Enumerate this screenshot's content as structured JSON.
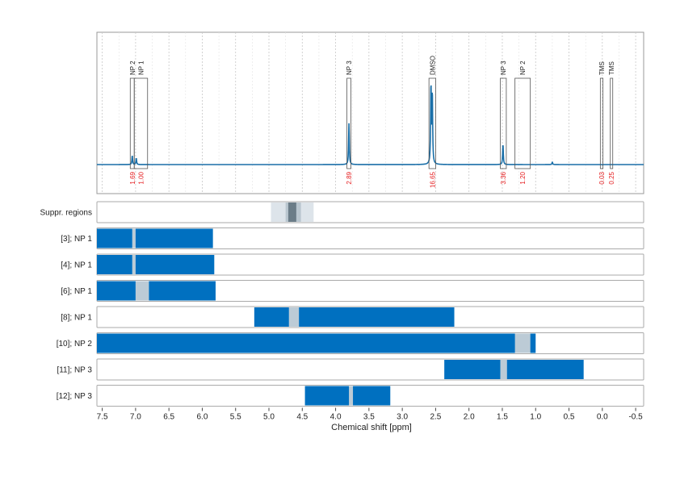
{
  "chart_data": {
    "type": "nmr-spectrum-with-range-tracks",
    "xlabel": "Chemical shift [ppm]",
    "xlim": [
      7.58,
      -0.62
    ],
    "x_reversed": true,
    "x_ticks": [
      "7.5",
      "7.0",
      "6.5",
      "6.0",
      "5.5",
      "5.0",
      "4.5",
      "4.0",
      "3.5",
      "3.0",
      "2.5",
      "2.0",
      "1.5",
      "1.0",
      "0.5",
      "0.0",
      "-0.5"
    ],
    "grid": true,
    "colors": {
      "spectrum": "#1a6fa8",
      "range": "#0070c0",
      "gap": "#bccbd6",
      "suppression_light": "#dde4ea",
      "suppression_dark": "#6b7d88",
      "integral": "#e41a1c"
    },
    "spectrum": {
      "peaks": [
        {
          "ppm": 7.05,
          "height": 0.07
        },
        {
          "ppm": 6.99,
          "height": 0.05
        },
        {
          "ppm": 3.8,
          "height": 0.32
        },
        {
          "ppm": 2.57,
          "height": 0.62
        },
        {
          "ppm": 2.55,
          "height": 0.55
        },
        {
          "ppm": 1.49,
          "height": 0.16
        },
        {
          "ppm": 0.75,
          "height": 0.02
        }
      ],
      "regions": [
        {
          "label": "NP 2",
          "from": 7.08,
          "to": 7.02,
          "integral": "1.69"
        },
        {
          "label": "NP 1",
          "from": 7.02,
          "to": 6.82,
          "integral": "1.00"
        },
        {
          "label": "NP 3",
          "from": 3.83,
          "to": 3.77,
          "integral": "2.89"
        },
        {
          "label": "DMSO",
          "from": 2.6,
          "to": 2.5,
          "integral": "16.65"
        },
        {
          "label": "NP 3",
          "from": 1.53,
          "to": 1.44,
          "integral": "3.36"
        },
        {
          "label": "NP 2",
          "from": 1.31,
          "to": 1.08,
          "integral": "1.20"
        },
        {
          "label": "TMS",
          "from": 0.03,
          "to": -0.01,
          "integral": "0.03"
        },
        {
          "label": "TMS",
          "from": -0.12,
          "to": -0.15,
          "integral": "0.25"
        }
      ]
    },
    "suppression": {
      "label": "Suppr. regions",
      "outer": [
        4.97,
        4.33
      ],
      "mid": [
        4.75,
        4.52
      ],
      "inner": [
        4.71,
        4.59
      ]
    },
    "tracks": [
      {
        "label": "[3]; NP 1",
        "ranges": [
          [
            7.58,
            7.05
          ],
          [
            7.0,
            5.84
          ]
        ]
      },
      {
        "label": "[4]; NP 1",
        "ranges": [
          [
            7.58,
            7.05
          ],
          [
            7.0,
            5.82
          ]
        ]
      },
      {
        "label": "[6]; NP 1",
        "ranges": [
          [
            7.58,
            7.0
          ],
          [
            6.8,
            5.8
          ]
        ]
      },
      {
        "label": "[8]; NP 1",
        "ranges": [
          [
            5.22,
            4.7
          ],
          [
            4.55,
            2.22
          ]
        ]
      },
      {
        "label": "[10]; NP 2",
        "ranges": [
          [
            7.58,
            1.31
          ],
          [
            1.08,
            1.0
          ]
        ]
      },
      {
        "label": "[11]; NP 3",
        "ranges": [
          [
            2.37,
            1.53
          ],
          [
            1.43,
            0.28
          ]
        ]
      },
      {
        "label": "[12]; NP 3",
        "ranges": [
          [
            4.46,
            3.8
          ],
          [
            3.74,
            3.18
          ]
        ]
      }
    ]
  }
}
